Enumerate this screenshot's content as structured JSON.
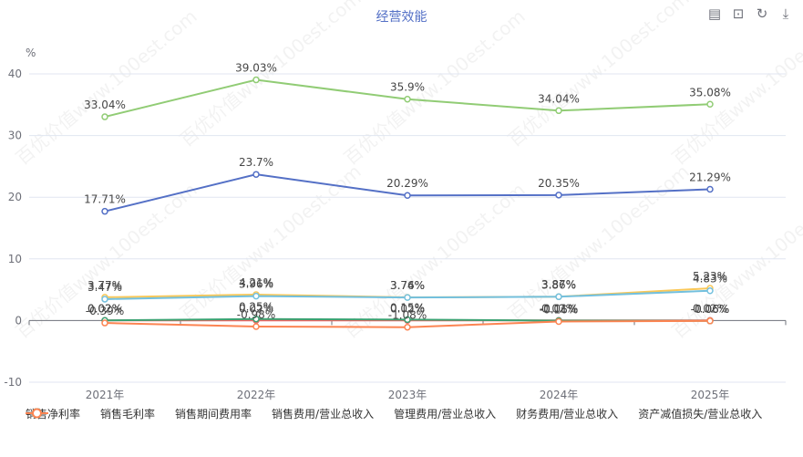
{
  "chart_data": {
    "type": "line",
    "title": "经营效能",
    "y_unit": "%",
    "categories": [
      "2021年",
      "2022年",
      "2023年",
      "2024年",
      "2025年"
    ],
    "ylim": [
      -10,
      40
    ],
    "yticks": [
      -10,
      0,
      10,
      20,
      30,
      40
    ],
    "grid": true,
    "legend_position": "bottom",
    "series": [
      {
        "name": "销售净利率",
        "color": "#5470c6",
        "values": [
          17.71,
          23.7,
          20.29,
          20.35,
          21.29
        ],
        "labels": [
          "17.71%",
          "23.7%",
          "20.29%",
          "20.35%",
          "21.29%"
        ]
      },
      {
        "name": "销售毛利率",
        "color": "#91cc75",
        "values": [
          33.04,
          39.03,
          35.9,
          34.04,
          35.08
        ],
        "labels": [
          "33.04%",
          "39.03%",
          "35.9%",
          "34.04%",
          "35.08%"
        ]
      },
      {
        "name": "销售期间费用率",
        "color": "#fac858",
        "values": [
          3.77,
          4.21,
          3.76,
          3.87,
          5.23
        ],
        "labels": [
          "3.77%",
          "4.21%",
          "3.76%",
          "3.87%",
          "5.23%"
        ]
      },
      {
        "name": "销售费用/营业总收入",
        "color": "#ee6666",
        "values": [
          0.02,
          0.02,
          0.02,
          0.02,
          0.02
        ],
        "labels": [
          "0.02%",
          "0.02%",
          "0.02%",
          "0.02%",
          "0.02%"
        ]
      },
      {
        "name": "管理费用/营业总收入",
        "color": "#73c0de",
        "values": [
          3.47,
          3.96,
          3.74,
          3.86,
          4.83
        ],
        "labels": [
          "3.47%",
          "3.96%",
          "3.74%",
          "3.86%",
          "4.83%"
        ]
      },
      {
        "name": "财务费用/营业总收入",
        "color": "#3ba272",
        "values": [
          0.02,
          0.25,
          0.15,
          -0.01,
          -0.06
        ],
        "labels": [
          "0.02%",
          "0.25%",
          "0.15%",
          "-0.01%",
          "-0.06%"
        ]
      },
      {
        "name": "资产减值损失/营业总收入",
        "color": "#fc8452",
        "values": [
          -0.39,
          -0.98,
          -1.08,
          -0.16,
          -0.06
        ],
        "labels": [
          "-0.39%",
          "-0.98%",
          "-1.08%",
          "-0.16%",
          "-0.06%"
        ]
      }
    ]
  },
  "toolbox": {
    "items": [
      {
        "name": "data-view",
        "glyph": "▤"
      },
      {
        "name": "restore",
        "glyph": "⊡"
      },
      {
        "name": "refresh",
        "glyph": "↻"
      },
      {
        "name": "download",
        "glyph": "⤓"
      }
    ]
  },
  "watermark": "百优价值www.100est.com"
}
